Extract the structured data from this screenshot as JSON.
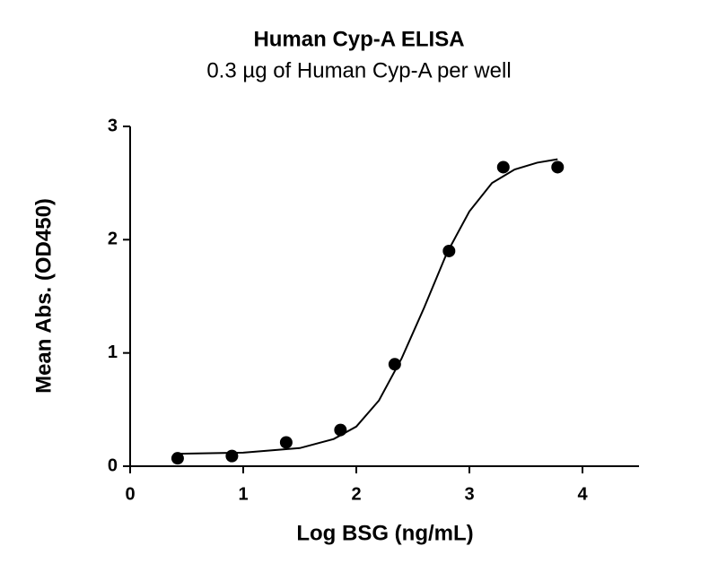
{
  "chart_data": {
    "type": "scatter",
    "title": "Human Cyp-A ELISA",
    "subtitle": "0.3 µg of Human Cyp-A per well",
    "x_label": "Log BSG (ng/mL)",
    "y_label": "Mean  Abs. (OD450)",
    "x": [
      0.42,
      0.9,
      1.38,
      1.86,
      2.34,
      2.82,
      3.3,
      3.78
    ],
    "values": [
      0.07,
      0.09,
      0.21,
      0.32,
      0.9,
      1.9,
      2.64,
      2.64
    ],
    "color": "#000000",
    "fit_x": [
      0.42,
      1.0,
      1.5,
      1.8,
      2.0,
      2.2,
      2.4,
      2.6,
      2.8,
      3.0,
      3.2,
      3.4,
      3.6,
      3.78
    ],
    "fit_y": [
      0.11,
      0.12,
      0.16,
      0.24,
      0.35,
      0.58,
      0.95,
      1.4,
      1.88,
      2.25,
      2.5,
      2.62,
      2.68,
      2.71
    ],
    "xlim": [
      0,
      4.5
    ],
    "ylim": [
      0,
      3
    ],
    "xticks": [
      0,
      1,
      2,
      3,
      4
    ],
    "yticks": [
      0,
      1,
      2,
      3
    ]
  }
}
